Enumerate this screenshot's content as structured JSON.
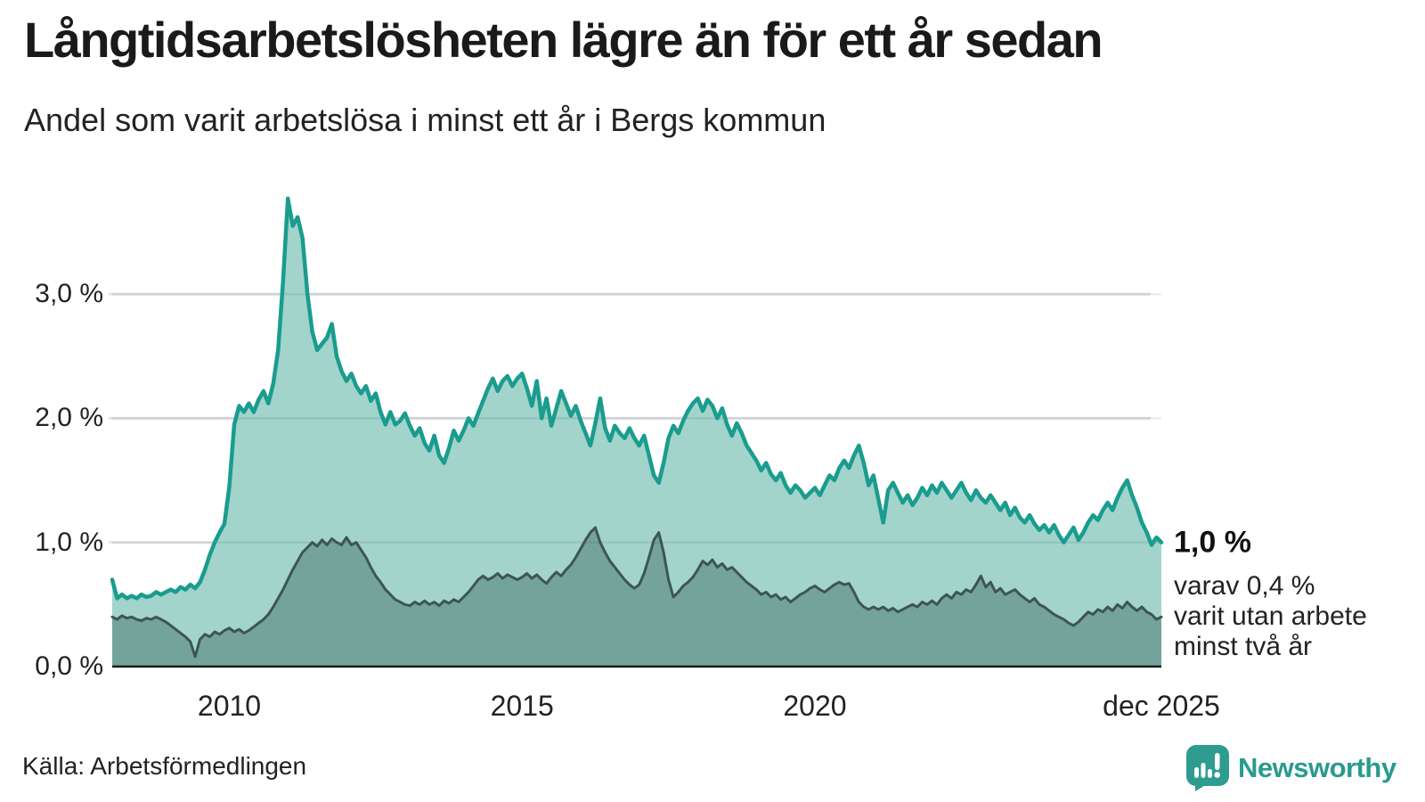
{
  "header": {
    "title": "Långtidsarbetslösheten lägre än för ett år sedan",
    "subtitle": "Andel som varit arbetslösa i minst ett år i Bergs kommun"
  },
  "footer": {
    "source": "Källa: Arbetsförmedlingen",
    "brand": "Newsworthy"
  },
  "colors": {
    "series1_line": "#1a9c8e",
    "series1_fill": "#a2d4cc",
    "series2_line": "#3d5650",
    "series2_fill": "#74a39b",
    "gridline": "#e3e3e8",
    "axis_line": "#1a1a1a",
    "brand_teal": "#2a9a8e"
  },
  "chart_data": {
    "type": "area",
    "title": "Långtidsarbetslösheten lägre än för ett år sedan",
    "subtitle": "Andel som varit arbetslösa i minst ett år i Bergs kommun",
    "frequency": "monthly",
    "x_range": [
      "2008-01",
      "2025-12"
    ],
    "ylim": [
      0,
      3.95
    ],
    "grid": true,
    "legend_position": "right-end-annotation",
    "x_ticks": [
      {
        "label": "2010",
        "t": 2010.0
      },
      {
        "label": "2015",
        "t": 2015.0
      },
      {
        "label": "2020",
        "t": 2020.0
      },
      {
        "label": "dec 2025",
        "t": 2025.917
      }
    ],
    "y_ticks": [
      {
        "label": "0,0 %",
        "value": 0
      },
      {
        "label": "1,0 %",
        "value": 1
      },
      {
        "label": "2,0 %",
        "value": 2
      },
      {
        "label": "3,0 %",
        "value": 3
      }
    ],
    "end_annotation": {
      "primary": "1,0 %",
      "secondary_lines": [
        "varav 0,4 %",
        "varit utan arbete",
        "minst två år"
      ]
    },
    "series": [
      {
        "name": "Andel som varit arbetslösa i minst ett år",
        "end_value_pct": 1.0,
        "line_color": "#1a9c8e",
        "fill_color": "#a2d4cc",
        "values": [
          0.7,
          0.55,
          0.58,
          0.55,
          0.57,
          0.55,
          0.58,
          0.56,
          0.57,
          0.6,
          0.58,
          0.6,
          0.62,
          0.6,
          0.64,
          0.62,
          0.66,
          0.63,
          0.68,
          0.78,
          0.9,
          1.0,
          1.08,
          1.15,
          1.45,
          1.95,
          2.1,
          2.05,
          2.12,
          2.05,
          2.15,
          2.22,
          2.12,
          2.28,
          2.55,
          3.1,
          3.77,
          3.55,
          3.62,
          3.45,
          3.0,
          2.7,
          2.55,
          2.6,
          2.65,
          2.76,
          2.5,
          2.38,
          2.3,
          2.36,
          2.26,
          2.2,
          2.26,
          2.14,
          2.2,
          2.05,
          1.95,
          2.05,
          1.95,
          1.98,
          2.04,
          1.94,
          1.86,
          1.92,
          1.8,
          1.74,
          1.86,
          1.7,
          1.64,
          1.76,
          1.9,
          1.82,
          1.9,
          2.0,
          1.94,
          2.04,
          2.14,
          2.24,
          2.32,
          2.22,
          2.3,
          2.34,
          2.26,
          2.32,
          2.36,
          2.24,
          2.1,
          2.3,
          2.0,
          2.16,
          1.94,
          2.08,
          2.22,
          2.12,
          2.02,
          2.1,
          1.98,
          1.88,
          1.78,
          1.96,
          2.16,
          1.92,
          1.82,
          1.94,
          1.88,
          1.84,
          1.92,
          1.84,
          1.78,
          1.86,
          1.7,
          1.54,
          1.48,
          1.64,
          1.84,
          1.94,
          1.88,
          1.98,
          2.06,
          2.12,
          2.16,
          2.06,
          2.15,
          2.1,
          2.0,
          2.08,
          1.95,
          1.86,
          1.96,
          1.88,
          1.78,
          1.72,
          1.66,
          1.58,
          1.64,
          1.55,
          1.5,
          1.56,
          1.46,
          1.4,
          1.46,
          1.42,
          1.36,
          1.4,
          1.44,
          1.38,
          1.46,
          1.54,
          1.5,
          1.6,
          1.66,
          1.6,
          1.7,
          1.78,
          1.64,
          1.46,
          1.54,
          1.35,
          1.16,
          1.42,
          1.48,
          1.4,
          1.32,
          1.38,
          1.3,
          1.36,
          1.44,
          1.38,
          1.46,
          1.4,
          1.48,
          1.42,
          1.36,
          1.42,
          1.48,
          1.4,
          1.34,
          1.42,
          1.36,
          1.32,
          1.38,
          1.32,
          1.26,
          1.32,
          1.22,
          1.28,
          1.2,
          1.16,
          1.22,
          1.15,
          1.1,
          1.14,
          1.08,
          1.14,
          1.06,
          1.0,
          1.06,
          1.12,
          1.02,
          1.08,
          1.16,
          1.22,
          1.18,
          1.26,
          1.32,
          1.26,
          1.36,
          1.44,
          1.5,
          1.38,
          1.28,
          1.16,
          1.08,
          0.98,
          1.04,
          1.0
        ]
      },
      {
        "name": "Varav utan arbete minst två år",
        "end_value_pct": 0.4,
        "line_color": "#3d5650",
        "fill_color": "#74a39b",
        "values": [
          0.4,
          0.38,
          0.41,
          0.39,
          0.4,
          0.38,
          0.37,
          0.39,
          0.38,
          0.4,
          0.38,
          0.36,
          0.33,
          0.3,
          0.27,
          0.24,
          0.2,
          0.08,
          0.22,
          0.26,
          0.24,
          0.28,
          0.26,
          0.29,
          0.31,
          0.28,
          0.3,
          0.27,
          0.29,
          0.32,
          0.35,
          0.38,
          0.42,
          0.48,
          0.55,
          0.62,
          0.7,
          0.78,
          0.85,
          0.92,
          0.96,
          1.0,
          0.97,
          1.02,
          0.98,
          1.03,
          1.0,
          0.98,
          1.04,
          0.98,
          1.0,
          0.94,
          0.88,
          0.8,
          0.73,
          0.68,
          0.62,
          0.58,
          0.54,
          0.52,
          0.5,
          0.49,
          0.52,
          0.5,
          0.53,
          0.5,
          0.52,
          0.49,
          0.53,
          0.51,
          0.54,
          0.52,
          0.56,
          0.6,
          0.65,
          0.7,
          0.73,
          0.7,
          0.72,
          0.75,
          0.71,
          0.74,
          0.72,
          0.7,
          0.72,
          0.75,
          0.71,
          0.74,
          0.7,
          0.67,
          0.72,
          0.76,
          0.73,
          0.78,
          0.82,
          0.88,
          0.95,
          1.02,
          1.08,
          1.12,
          1.0,
          0.92,
          0.85,
          0.8,
          0.75,
          0.7,
          0.66,
          0.63,
          0.66,
          0.75,
          0.88,
          1.02,
          1.08,
          0.92,
          0.7,
          0.56,
          0.6,
          0.65,
          0.68,
          0.72,
          0.78,
          0.85,
          0.82,
          0.86,
          0.8,
          0.83,
          0.78,
          0.8,
          0.76,
          0.72,
          0.68,
          0.65,
          0.62,
          0.58,
          0.6,
          0.56,
          0.58,
          0.54,
          0.56,
          0.52,
          0.55,
          0.58,
          0.6,
          0.63,
          0.65,
          0.62,
          0.6,
          0.63,
          0.66,
          0.68,
          0.66,
          0.67,
          0.6,
          0.52,
          0.48,
          0.46,
          0.48,
          0.46,
          0.48,
          0.45,
          0.47,
          0.44,
          0.46,
          0.48,
          0.5,
          0.48,
          0.52,
          0.5,
          0.53,
          0.5,
          0.55,
          0.58,
          0.55,
          0.6,
          0.58,
          0.62,
          0.6,
          0.66,
          0.73,
          0.64,
          0.68,
          0.6,
          0.63,
          0.58,
          0.6,
          0.62,
          0.58,
          0.55,
          0.52,
          0.55,
          0.5,
          0.48,
          0.45,
          0.42,
          0.4,
          0.38,
          0.35,
          0.33,
          0.36,
          0.4,
          0.44,
          0.42,
          0.46,
          0.44,
          0.48,
          0.45,
          0.5,
          0.47,
          0.52,
          0.48,
          0.45,
          0.48,
          0.44,
          0.42,
          0.38,
          0.4
        ]
      }
    ]
  }
}
